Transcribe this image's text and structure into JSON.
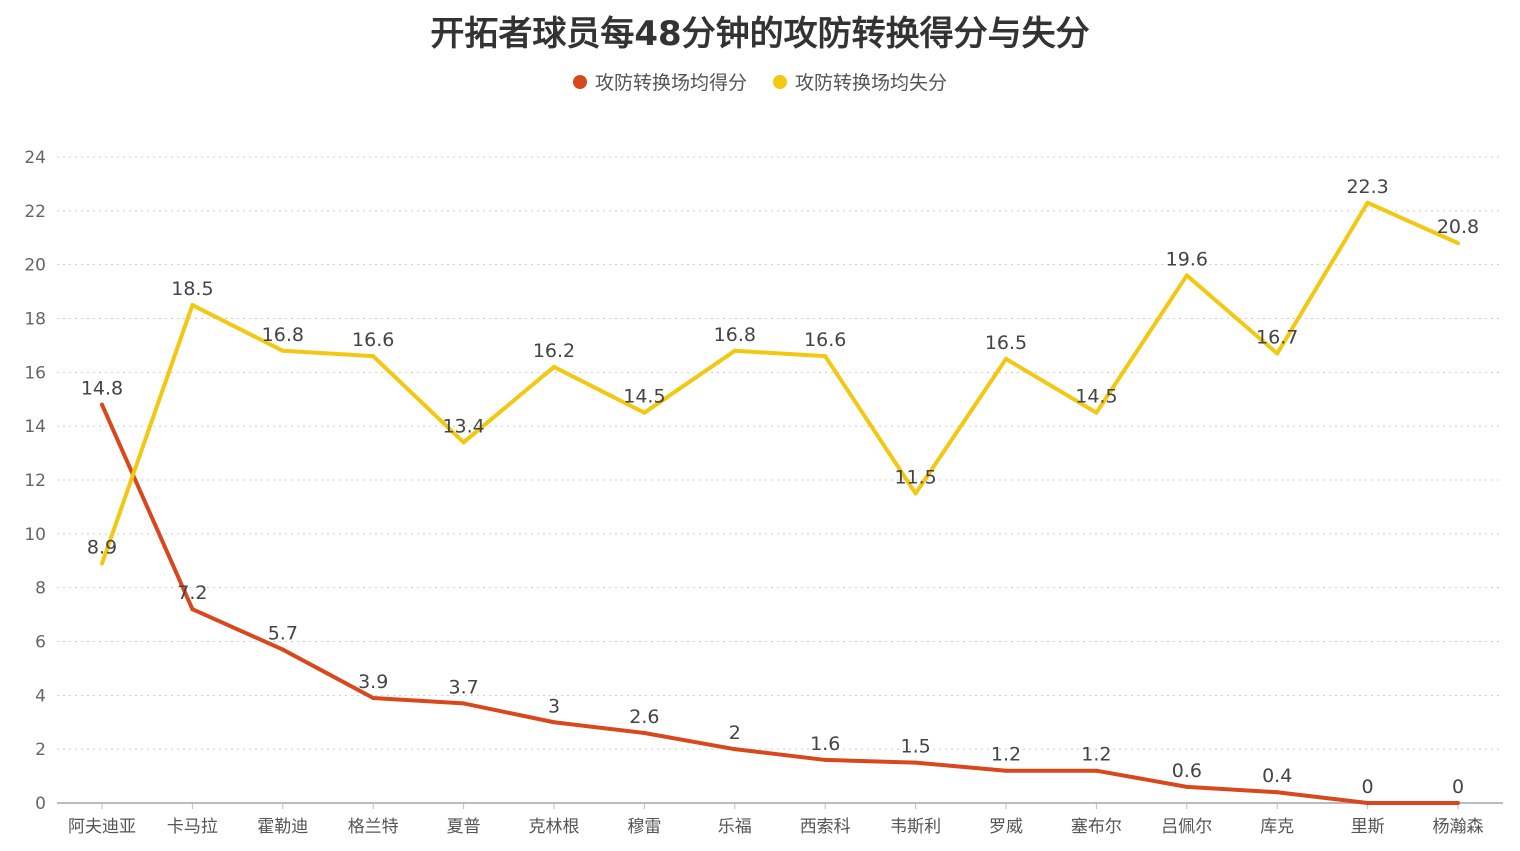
{
  "chart_data": {
    "type": "line",
    "title": "开拓者球员每48分钟的攻防转换得分与失分",
    "xlabel": "",
    "ylabel": "",
    "ylim": [
      0,
      24
    ],
    "yticks": [
      0,
      2,
      4,
      6,
      8,
      10,
      12,
      14,
      16,
      18,
      20,
      22,
      24
    ],
    "grid": true,
    "legend_position": "top-center",
    "categories": [
      "阿夫迪亚",
      "卡马拉",
      "霍勒迪",
      "格兰特",
      "夏普",
      "克林根",
      "穆雷",
      "乐福",
      "西索科",
      "韦斯利",
      "罗威",
      "塞布尔",
      "吕佩尔",
      "库克",
      "里斯",
      "杨瀚森"
    ],
    "series": [
      {
        "name": "攻防转换场均得分",
        "color": "#D9481C",
        "values": [
          14.8,
          7.2,
          5.7,
          3.9,
          3.7,
          3,
          2.6,
          2,
          1.6,
          1.5,
          1.2,
          1.2,
          0.6,
          0.4,
          0,
          0
        ]
      },
      {
        "name": "攻防转换场均失分",
        "color": "#F2C811",
        "values": [
          8.9,
          18.5,
          16.8,
          16.6,
          13.4,
          16.2,
          14.5,
          16.8,
          16.6,
          11.5,
          16.5,
          14.5,
          19.6,
          16.7,
          22.3,
          20.8
        ]
      }
    ]
  }
}
